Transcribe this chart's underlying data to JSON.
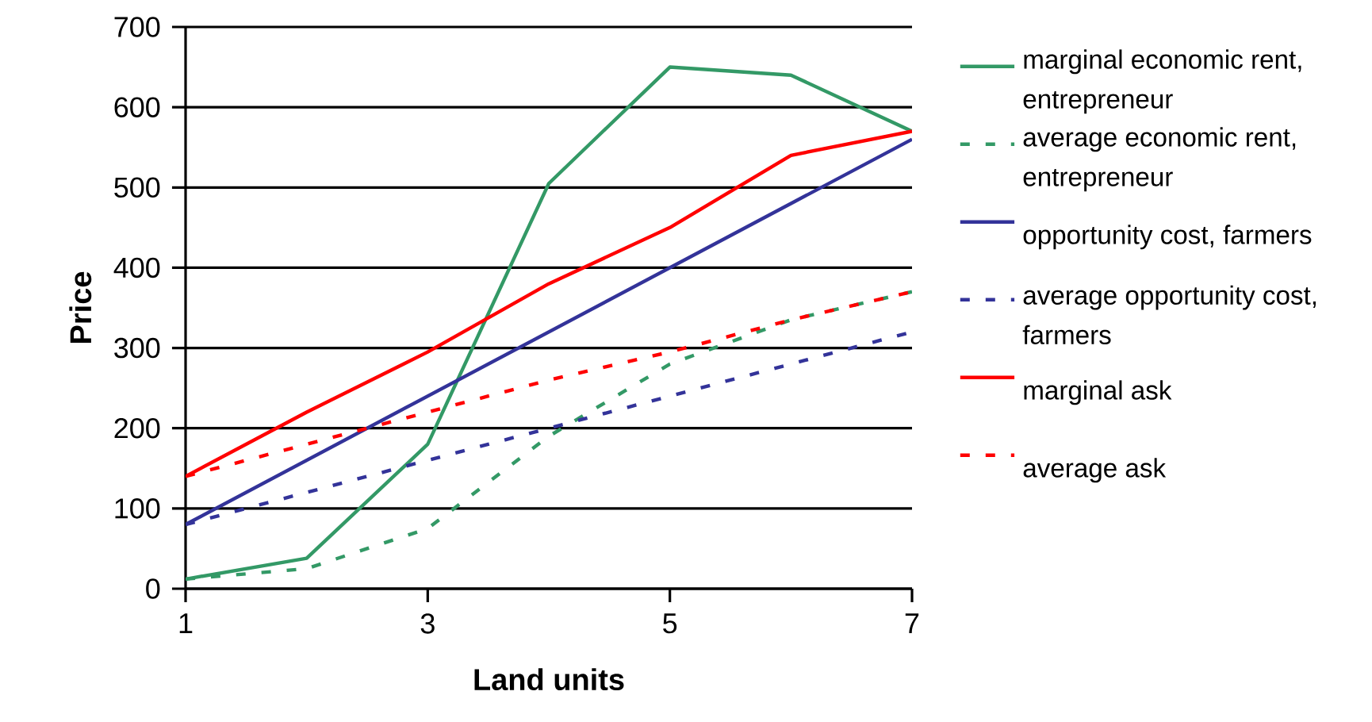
{
  "chart_data": {
    "type": "line",
    "xlabel": "Land units",
    "ylabel": "Price",
    "x": [
      1,
      2,
      3,
      4,
      5,
      6,
      7
    ],
    "xlim": [
      1,
      7
    ],
    "ylim": [
      0,
      700
    ],
    "xticks": [
      1,
      3,
      5,
      7
    ],
    "yticks": [
      0,
      100,
      200,
      300,
      400,
      500,
      600,
      700
    ],
    "grid": "y",
    "legend": "right",
    "series": [
      {
        "name": "marginal economic rent, entrepreneur",
        "color": "#339966",
        "line_style": "solid",
        "values": [
          12,
          38,
          180,
          505,
          650,
          640,
          570
        ]
      },
      {
        "name": "average economic rent, entrepreneur",
        "color": "#339966",
        "line_style": "dashed",
        "values": [
          12,
          25,
          75,
          190,
          280,
          335,
          370
        ]
      },
      {
        "name": "opportunity cost, farmers",
        "color": "#333399",
        "line_style": "solid",
        "values": [
          80,
          160,
          240,
          320,
          400,
          480,
          560
        ]
      },
      {
        "name": "average opportunity cost, farmers",
        "color": "#333399",
        "line_style": "dashed",
        "values": [
          80,
          120,
          160,
          200,
          240,
          280,
          320
        ]
      },
      {
        "name": "marginal ask",
        "color": "#ff0000",
        "line_style": "solid",
        "values": [
          140,
          220,
          295,
          380,
          450,
          540,
          570
        ]
      },
      {
        "name": "average ask",
        "color": "#ff0000",
        "line_style": "dashed",
        "values": [
          140,
          180,
          220,
          260,
          295,
          335,
          370
        ]
      }
    ]
  }
}
